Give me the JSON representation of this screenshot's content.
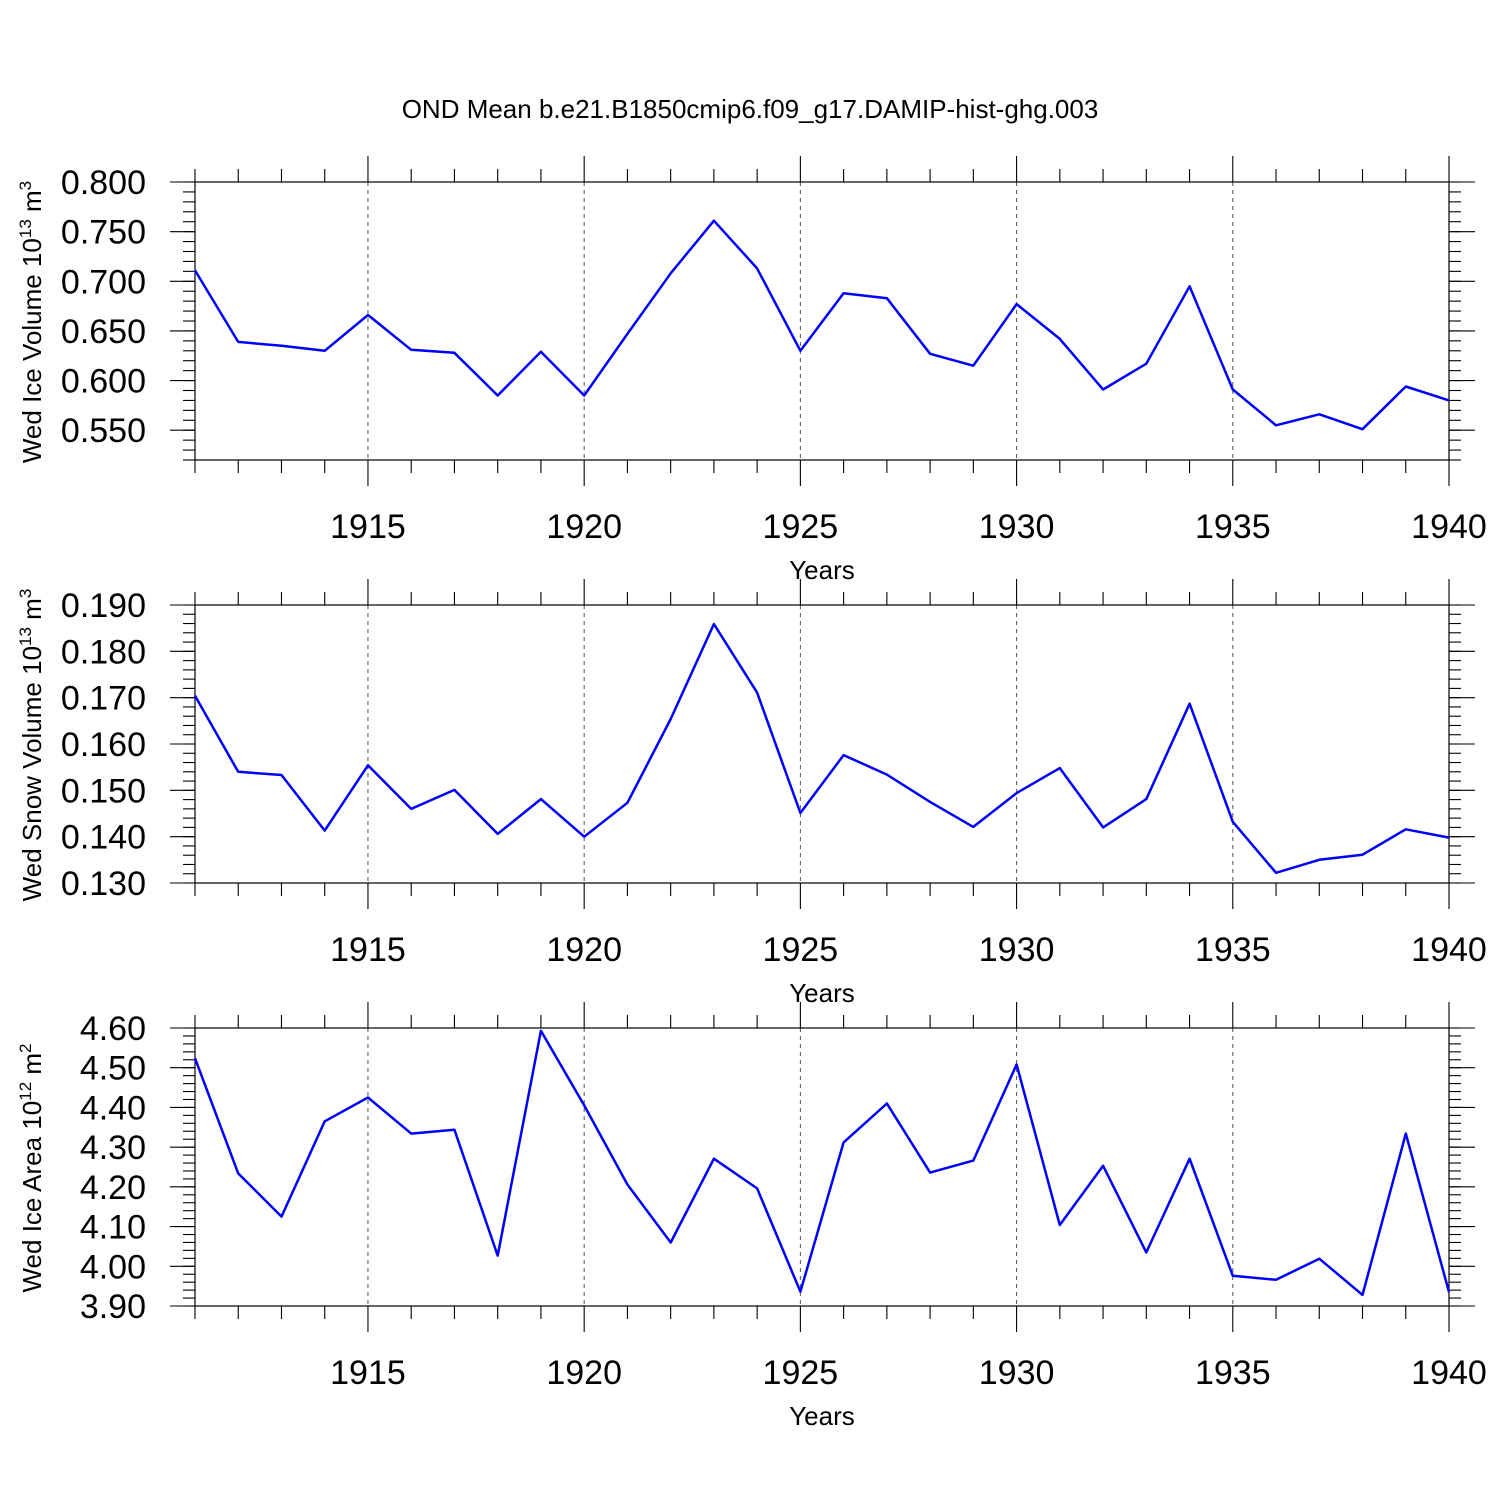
{
  "title": "OND Mean b.e21.B1850cmip6.f09_g17.DAMIP-hist-ghg.003",
  "colors": {
    "series": "#0000ff",
    "axes": "#000000",
    "grid": "#555555"
  },
  "chart_data": [
    {
      "type": "line",
      "xlabel": "Years",
      "ylabel": "Wed Ice Volume 10",
      "ylabel_exp": "13",
      "ylabel_unit": " m",
      "ylabel_unit_exp": "3",
      "xlim": [
        1911,
        1940
      ],
      "ylim": [
        0.52,
        0.8
      ],
      "xticks": [
        1915,
        1920,
        1925,
        1930,
        1935,
        1940
      ],
      "xtick_labels": [
        "1915",
        "1920",
        "1925",
        "1930",
        "1935",
        "1940"
      ],
      "yticks": [
        0.55,
        0.6,
        0.65,
        0.7,
        0.75,
        0.8
      ],
      "ytick_labels": [
        "0.550",
        "0.600",
        "0.650",
        "0.700",
        "0.750",
        "0.800"
      ],
      "yminor_step": 0.01,
      "grid": "vertical dashed at major x ticks",
      "x": [
        1911,
        1912,
        1913,
        1914,
        1915,
        1916,
        1917,
        1918,
        1919,
        1920,
        1921,
        1922,
        1923,
        1924,
        1925,
        1926,
        1927,
        1928,
        1929,
        1930,
        1931,
        1932,
        1933,
        1934,
        1935,
        1936,
        1937,
        1938,
        1939,
        1940
      ],
      "series": [
        {
          "values": [
            0.711,
            0.639,
            0.635,
            0.63,
            0.666,
            0.631,
            0.628,
            0.585,
            0.629,
            0.585,
            0.647,
            0.708,
            0.761,
            0.713,
            0.63,
            0.688,
            0.683,
            0.627,
            0.615,
            0.677,
            0.642,
            0.591,
            0.617,
            0.695,
            0.591,
            0.555,
            0.566,
            0.551,
            0.594,
            0.58
          ]
        }
      ]
    },
    {
      "type": "line",
      "xlabel": "Years",
      "ylabel": "Wed Snow Volume 10",
      "ylabel_exp": "13",
      "ylabel_unit": " m",
      "ylabel_unit_exp": "3",
      "xlim": [
        1911,
        1940
      ],
      "ylim": [
        0.13,
        0.19
      ],
      "xticks": [
        1915,
        1920,
        1925,
        1930,
        1935,
        1940
      ],
      "xtick_labels": [
        "1915",
        "1920",
        "1925",
        "1930",
        "1935",
        "1940"
      ],
      "yticks": [
        0.13,
        0.14,
        0.15,
        0.16,
        0.17,
        0.18,
        0.19
      ],
      "ytick_labels": [
        "0.130",
        "0.140",
        "0.150",
        "0.160",
        "0.170",
        "0.180",
        "0.190"
      ],
      "yminor_step": 0.002,
      "grid": "vertical dashed at major x ticks",
      "x": [
        1911,
        1912,
        1913,
        1914,
        1915,
        1916,
        1917,
        1918,
        1919,
        1920,
        1921,
        1922,
        1923,
        1924,
        1925,
        1926,
        1927,
        1928,
        1929,
        1930,
        1931,
        1932,
        1933,
        1934,
        1935,
        1936,
        1937,
        1938,
        1939,
        1940
      ],
      "series": [
        {
          "values": [
            0.1704,
            0.154,
            0.1533,
            0.1413,
            0.1554,
            0.146,
            0.1501,
            0.1406,
            0.1481,
            0.14,
            0.1473,
            0.1654,
            0.1859,
            0.1711,
            0.1451,
            0.1576,
            0.1534,
            0.1475,
            0.1421,
            0.1494,
            0.1548,
            0.142,
            0.1481,
            0.1687,
            0.1432,
            0.1322,
            0.135,
            0.1361,
            0.1416,
            0.1398
          ]
        }
      ]
    },
    {
      "type": "line",
      "xlabel": "Years",
      "ylabel": "Wed Ice Area 10",
      "ylabel_exp": "12",
      "ylabel_unit": " m",
      "ylabel_unit_exp": "2",
      "xlim": [
        1911,
        1940
      ],
      "ylim": [
        3.9,
        4.6
      ],
      "xticks": [
        1915,
        1920,
        1925,
        1930,
        1935,
        1940
      ],
      "xtick_labels": [
        "1915",
        "1920",
        "1925",
        "1930",
        "1935",
        "1940"
      ],
      "yticks": [
        3.9,
        4.0,
        4.1,
        4.2,
        4.3,
        4.4,
        4.5,
        4.6
      ],
      "ytick_labels": [
        "3.90",
        "4.00",
        "4.10",
        "4.20",
        "4.30",
        "4.40",
        "4.50",
        "4.60"
      ],
      "yminor_step": 0.02,
      "grid": "vertical dashed at major x ticks",
      "x": [
        1911,
        1912,
        1913,
        1914,
        1915,
        1916,
        1917,
        1918,
        1919,
        1920,
        1921,
        1922,
        1923,
        1924,
        1925,
        1926,
        1927,
        1928,
        1929,
        1930,
        1931,
        1932,
        1933,
        1934,
        1935,
        1936,
        1937,
        1938,
        1939,
        1940
      ],
      "series": [
        {
          "values": [
            4.524,
            4.234,
            4.125,
            4.365,
            4.425,
            4.334,
            4.344,
            4.027,
            4.593,
            4.405,
            4.206,
            4.06,
            4.271,
            4.196,
            3.936,
            4.312,
            4.41,
            4.236,
            4.266,
            4.508,
            4.104,
            4.253,
            4.035,
            4.271,
            3.976,
            3.966,
            4.019,
            3.928,
            4.334,
            3.935
          ]
        }
      ]
    }
  ]
}
